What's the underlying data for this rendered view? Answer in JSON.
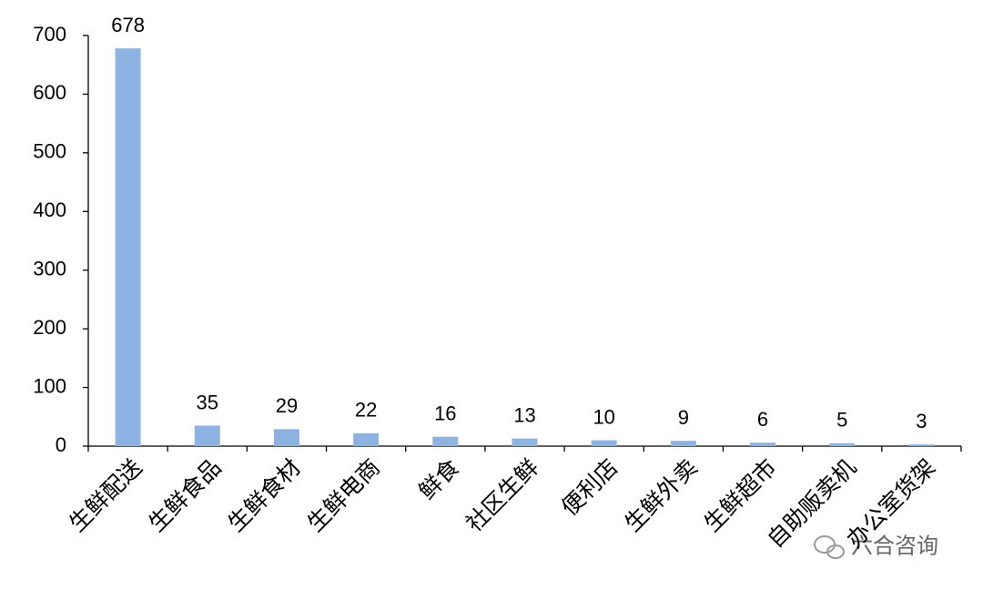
{
  "chart_data": {
    "type": "bar",
    "categories": [
      "生鲜配送",
      "生鲜食品",
      "生鲜食材",
      "生鲜电商",
      "鲜食",
      "社区生鲜",
      "便利店",
      "生鲜外卖",
      "生鲜超市",
      "自助贩卖机",
      "办公室货架"
    ],
    "values": [
      678,
      35,
      29,
      22,
      16,
      13,
      10,
      9,
      6,
      5,
      3
    ],
    "color": "#8db3e2",
    "ylim": [
      0,
      700
    ],
    "yticks": [
      0,
      100,
      200,
      300,
      400,
      500,
      600,
      700
    ]
  },
  "watermark": "六合咨询"
}
